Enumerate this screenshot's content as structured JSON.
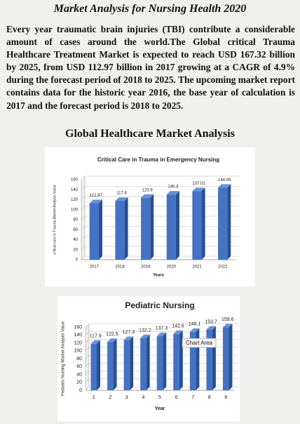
{
  "heading": "Market Analysis for Nursing Health 2020",
  "paragraph": "Every year traumatic brain injuries (TBI) contribute a considerable amount of cases around the world.The Global critical Trauma Healthcare Treatment Market is expected to reach USD 167.32 billion by 2025, from USD 112.97 billion in 2017 growing at a CAGR of 4.9% during the forecast period of 2018 to 2025. The upcoming market report contains data for the historic year 2016, the base year of calculation is 2017 and the forecast period is 2018 to 2025.",
  "section_title": "Global Healthcare Market Analysis",
  "chart_data": [
    {
      "type": "bar",
      "title": "Critical Care in Trauma in Emergency Nursing",
      "categories": [
        "2017",
        "2018",
        "2019",
        "2020",
        "2021",
        "2022"
      ],
      "values": [
        112.97,
        117.8,
        123.9,
        130.3,
        137.02,
        144.09
      ],
      "color": "#4472c4",
      "x_label": "Years",
      "y_label": "critical care in Trauma Market Analysis Value",
      "ylim": [
        0,
        160
      ],
      "yticks": [
        0,
        20,
        40,
        60,
        80,
        100,
        120,
        140,
        160
      ],
      "grid": true
    },
    {
      "type": "bar",
      "title": "Pediatric Nursing",
      "categories": [
        "1",
        "2",
        "3",
        "4",
        "5",
        "6",
        "7",
        "8",
        "9"
      ],
      "values": [
        117.9,
        122.5,
        127.3,
        132.2,
        137.3,
        142.6,
        148.1,
        153.7,
        159.6
      ],
      "color": "#4472c4",
      "x_label": "Year",
      "y_label": "Pediatric Nursing Market Analysis Value",
      "ylim": [
        0,
        160
      ],
      "yticks": [
        0,
        20,
        40,
        60,
        80,
        100,
        120,
        140,
        160
      ],
      "grid": true,
      "tooltip": "Chart Area"
    }
  ]
}
